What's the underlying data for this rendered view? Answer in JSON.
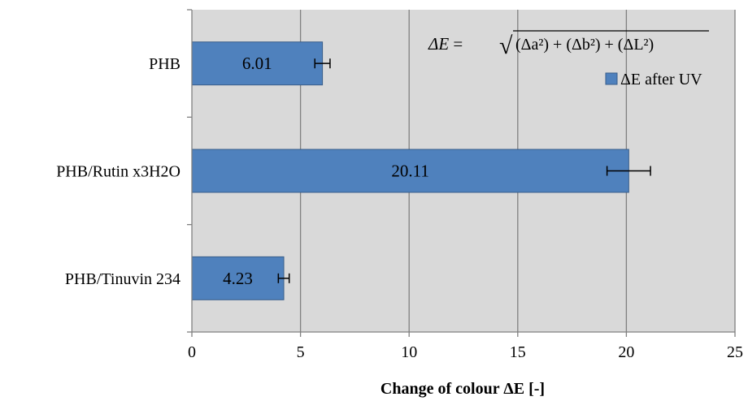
{
  "chart_data": {
    "type": "bar",
    "orientation": "horizontal",
    "categories": [
      "PHB",
      "PHB/Rutin x3H2O",
      "PHB/Tinuvin 234"
    ],
    "series": [
      {
        "name": "ΔE after UV",
        "values": [
          6.01,
          20.11,
          4.23
        ],
        "errors": [
          0.35,
          1.0,
          0.25
        ],
        "data_labels": [
          "6.01",
          "20.11",
          "4.23"
        ]
      }
    ],
    "xlabel": "Change of colour  ΔE [-]",
    "ylabel": "",
    "xlim": [
      0,
      25
    ],
    "xticks": [
      0,
      5,
      10,
      15,
      20,
      25
    ],
    "xtick_labels": [
      "0",
      "5",
      "10",
      "15",
      "20",
      "25"
    ],
    "grid": true,
    "legend_position": "top-right",
    "formula_lhs": "ΔE",
    "formula_rhs": "(Δa²) + (Δb²) + (ΔL²)",
    "colors": {
      "bar_fill": "#4f81bd",
      "bar_stroke": "#385d8a",
      "plot_background": "#d9d9d9",
      "gridline": "#808080"
    }
  }
}
